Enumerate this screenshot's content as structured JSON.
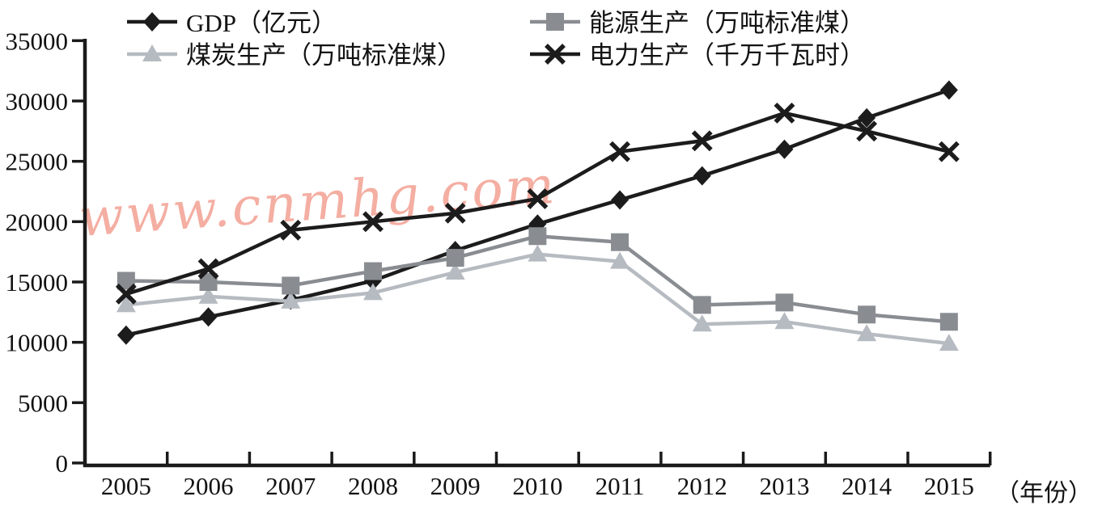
{
  "watermark": {
    "text": "www.cnmhg.com",
    "color": "#F29A8C"
  },
  "axes": {
    "x_unit_label": "（年份）",
    "y_tick_step": 5000,
    "y_ticks": [
      0,
      5000,
      10000,
      15000,
      20000,
      25000,
      30000,
      35000
    ]
  },
  "chart_data": {
    "type": "line",
    "title": "",
    "xlabel": "（年份）",
    "ylabel": "",
    "ylim": [
      0,
      35000
    ],
    "grid": false,
    "legend_position": "top",
    "categories": [
      "2005",
      "2006",
      "2007",
      "2008",
      "2009",
      "2010",
      "2011",
      "2012",
      "2013",
      "2014",
      "2015"
    ],
    "series": [
      {
        "id": "gdp",
        "name": "GDP（亿元）",
        "marker": "diamond",
        "color": "#1c1c1c",
        "values": [
          10600,
          12100,
          13500,
          15100,
          17600,
          19800,
          21800,
          23800,
          26000,
          28600,
          30900
        ]
      },
      {
        "id": "energy",
        "name": "能源生产（万吨标准煤）",
        "marker": "square",
        "color": "#898D92",
        "values": [
          15100,
          15000,
          14700,
          15900,
          17000,
          18800,
          18300,
          13100,
          13300,
          12300,
          11700
        ]
      },
      {
        "id": "coal",
        "name": "煤炭生产（万吨标准煤）",
        "marker": "triangle",
        "color": "#B6BBC1",
        "values": [
          13100,
          13800,
          13400,
          14100,
          15800,
          17300,
          16700,
          11500,
          11700,
          10700,
          9900
        ]
      },
      {
        "id": "electricity",
        "name": "电力生产（千万千瓦时）",
        "marker": "x",
        "color": "#1c1c1c",
        "values": [
          14000,
          16100,
          19300,
          20000,
          20700,
          21900,
          25800,
          26700,
          29000,
          27500,
          25800
        ]
      }
    ]
  }
}
